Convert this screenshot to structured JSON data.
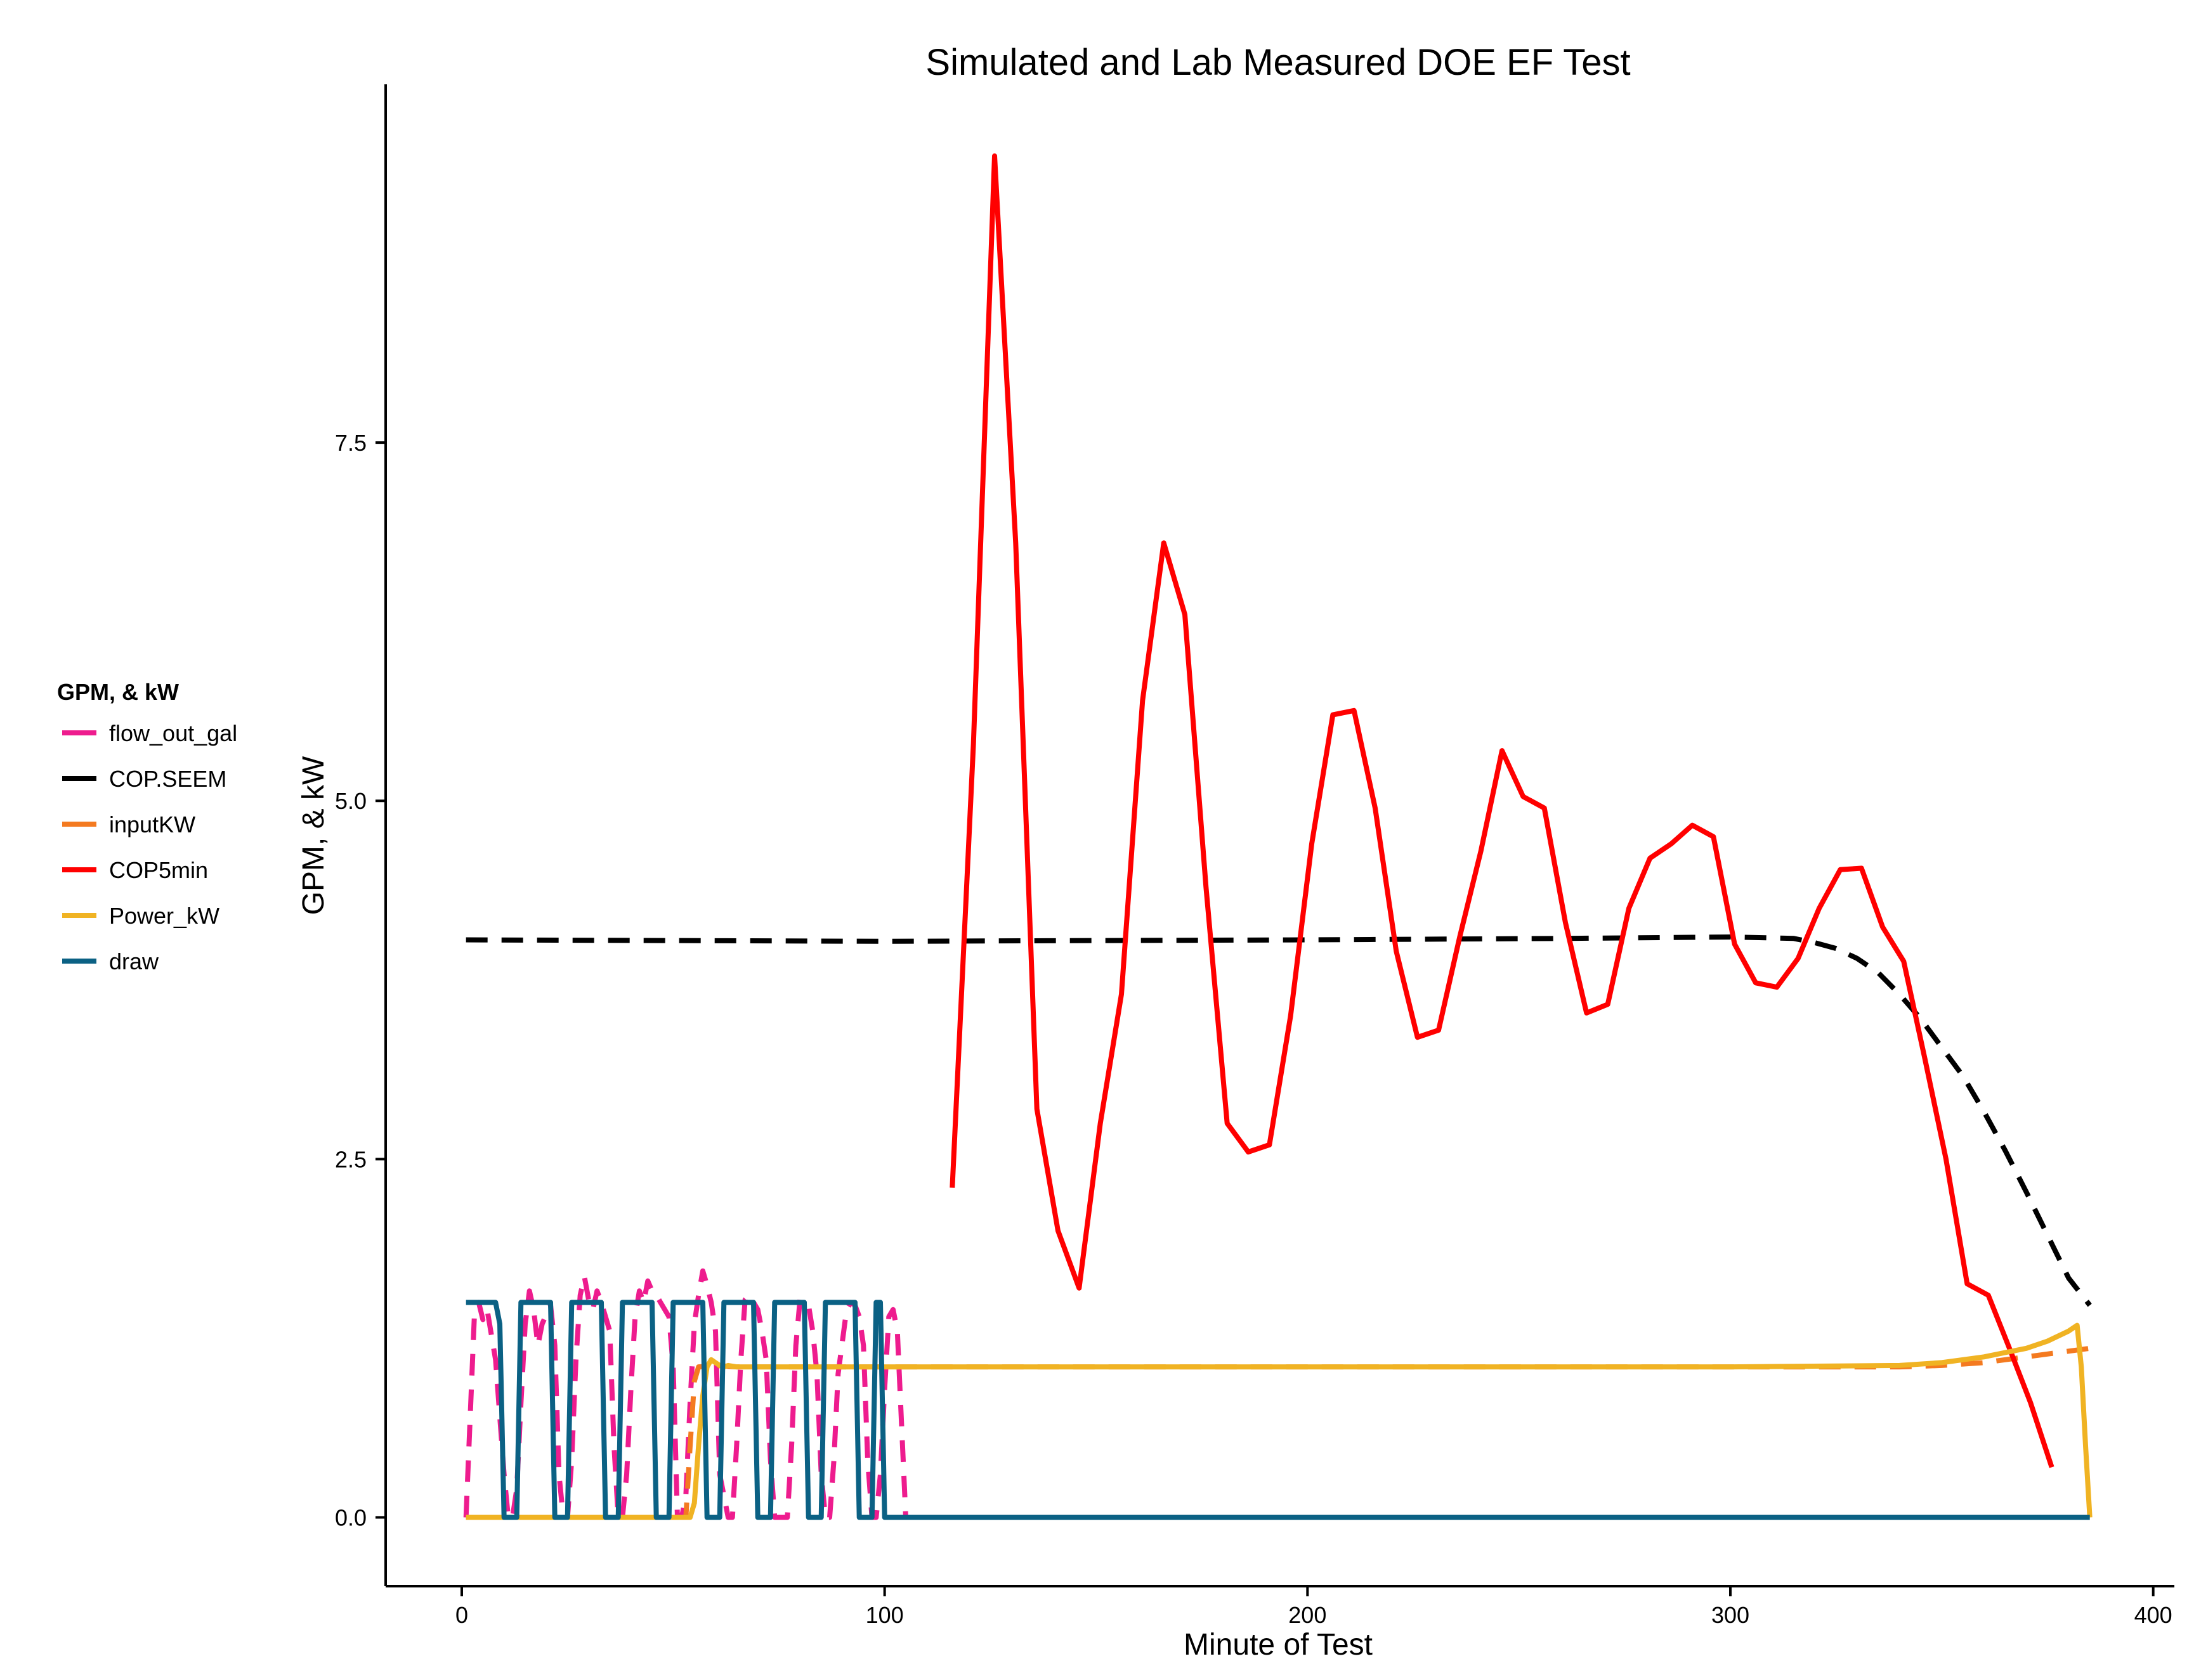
{
  "chart_data": {
    "type": "line",
    "title": "Simulated and Lab Measured DOE EF Test",
    "xlabel": "Minute of Test",
    "ylabel": "GPM, & kW",
    "xlim": [
      -18,
      405
    ],
    "ylim": [
      -0.48,
      10.0
    ],
    "x_ticks": [
      0,
      100,
      200,
      300,
      400
    ],
    "y_ticks": [
      0.0,
      2.5,
      5.0,
      7.5
    ],
    "x_tick_labels": [
      "0",
      "100",
      "200",
      "300",
      "400"
    ],
    "y_tick_labels": [
      "0.0",
      "2.5",
      "5.0",
      "7.5"
    ],
    "grid": false,
    "legend": {
      "title": "GPM, & kW",
      "placement": "left",
      "entries": [
        "flow_out_gal",
        "COP.SEEM",
        "inputKW",
        "COP5min",
        "Power_kW",
        "draw"
      ]
    },
    "series": [
      {
        "name": "flow_out_gal",
        "color": "#ee1c8e",
        "dash": "dashed",
        "x": [
          1,
          3,
          4,
          5,
          6,
          8,
          10,
          11,
          12,
          13,
          14,
          15,
          16,
          17,
          18,
          19,
          21,
          22,
          23,
          24,
          25,
          26,
          27,
          28,
          29,
          30,
          31,
          32,
          33,
          35,
          36,
          37,
          38,
          39,
          40,
          41,
          42,
          43,
          44,
          45,
          46,
          47,
          49,
          50,
          51,
          52,
          53,
          54,
          55,
          56,
          57,
          58,
          59,
          60,
          61,
          63,
          64,
          65,
          66,
          67,
          68,
          69,
          70,
          71,
          72,
          73,
          74,
          75,
          77,
          78,
          79,
          80,
          81,
          82,
          83,
          84,
          85,
          86,
          87,
          88,
          89,
          91,
          92,
          93,
          94,
          95,
          96,
          97,
          98,
          99,
          100,
          101,
          102,
          103,
          105
        ],
        "y": [
          0.0,
          1.42,
          1.5,
          1.38,
          1.45,
          1.1,
          0.3,
          0.0,
          0.0,
          0.2,
          0.8,
          1.35,
          1.58,
          1.45,
          1.2,
          1.35,
          1.48,
          1.2,
          0.3,
          0.0,
          0.0,
          0.4,
          1.1,
          1.55,
          1.68,
          1.52,
          1.45,
          1.58,
          1.5,
          1.3,
          0.5,
          0.0,
          0.0,
          0.3,
          0.9,
          1.4,
          1.58,
          1.5,
          1.65,
          1.58,
          1.55,
          1.5,
          1.4,
          1.05,
          0.0,
          0.0,
          0.15,
          0.8,
          1.35,
          1.55,
          1.72,
          1.62,
          1.5,
          1.3,
          0.3,
          0.0,
          0.0,
          0.5,
          1.1,
          1.52,
          1.55,
          1.5,
          1.45,
          1.3,
          1.1,
          0.4,
          0.0,
          0.0,
          0.0,
          0.5,
          1.2,
          1.52,
          1.5,
          1.48,
          1.3,
          1.0,
          0.3,
          0.0,
          0.0,
          0.4,
          1.0,
          1.45,
          1.5,
          1.48,
          1.4,
          1.2,
          0.4,
          0.0,
          0.0,
          0.3,
          0.9,
          1.4,
          1.45,
          1.3,
          0.0
        ]
      },
      {
        "name": "COP.SEEM",
        "color": "#000000",
        "dash": "dashed",
        "x": [
          1,
          100,
          200,
          260,
          300,
          315,
          320,
          325,
          330,
          335,
          340,
          345,
          350,
          355,
          360,
          365,
          370,
          375,
          380,
          385
        ],
        "y": [
          4.03,
          4.02,
          4.03,
          4.04,
          4.05,
          4.04,
          4.01,
          3.97,
          3.9,
          3.8,
          3.65,
          3.48,
          3.28,
          3.08,
          2.83,
          2.56,
          2.27,
          1.97,
          1.67,
          1.48
        ]
      },
      {
        "name": "inputKW",
        "color": "#f47a20",
        "dash": "dashed",
        "x": [
          1,
          53,
          54,
          55,
          56,
          60,
          65,
          100,
          200,
          300,
          340,
          350,
          355,
          360,
          365,
          370,
          375,
          380,
          385
        ],
        "y": [
          0.0,
          0.0,
          0.5,
          0.95,
          1.05,
          1.06,
          1.05,
          1.05,
          1.05,
          1.05,
          1.05,
          1.06,
          1.07,
          1.08,
          1.1,
          1.12,
          1.14,
          1.16,
          1.18
        ]
      },
      {
        "name": "COP5min",
        "color": "#ff0000",
        "dash": "solid",
        "x": [
          116,
          121,
          126,
          131,
          136,
          141,
          146,
          151,
          156,
          161,
          166,
          171,
          176,
          181,
          186,
          191,
          196,
          201,
          206,
          211,
          216,
          221,
          226,
          231,
          236,
          241,
          246,
          251,
          256,
          261,
          266,
          271,
          276,
          281,
          286,
          291,
          296,
          301,
          306,
          311,
          316,
          321,
          326,
          331,
          336,
          341,
          346,
          351,
          356,
          361,
          366,
          371,
          376
        ],
        "y": [
          2.3,
          5.4,
          9.5,
          6.8,
          2.85,
          2.0,
          1.6,
          2.75,
          3.65,
          5.7,
          6.8,
          6.3,
          4.4,
          2.75,
          2.55,
          2.6,
          3.5,
          4.7,
          5.6,
          5.63,
          4.95,
          3.95,
          3.35,
          3.4,
          4.05,
          4.65,
          5.35,
          5.03,
          4.95,
          4.15,
          3.52,
          3.58,
          4.25,
          4.6,
          4.7,
          4.83,
          4.75,
          4.0,
          3.73,
          3.7,
          3.9,
          4.25,
          4.52,
          4.53,
          4.12,
          3.88,
          3.2,
          2.5,
          1.63,
          1.55,
          1.18,
          0.8,
          0.35
        ]
      },
      {
        "name": "Power_kW",
        "color": "#f0b323",
        "dash": "solid",
        "x": [
          1,
          54,
          55,
          56,
          57,
          58,
          59,
          60,
          61,
          62,
          63,
          65,
          100,
          200,
          300,
          340,
          350,
          355,
          360,
          365,
          370,
          375,
          380,
          382,
          383,
          384,
          385
        ],
        "y": [
          0.0,
          0.0,
          0.1,
          0.5,
          0.85,
          1.05,
          1.1,
          1.08,
          1.06,
          1.05,
          1.06,
          1.05,
          1.05,
          1.05,
          1.05,
          1.06,
          1.08,
          1.1,
          1.12,
          1.15,
          1.18,
          1.23,
          1.3,
          1.34,
          1.05,
          0.5,
          0.0
        ]
      },
      {
        "name": "draw",
        "color": "#0b6184",
        "dash": "solid",
        "x": [
          1,
          8,
          9,
          10,
          13,
          14,
          21,
          22,
          25,
          26,
          33,
          34,
          37,
          38,
          45,
          46,
          49,
          50,
          57,
          58,
          61,
          62,
          69,
          70,
          73,
          74,
          81,
          82,
          85,
          86,
          93,
          94,
          97,
          98,
          99,
          100,
          385
        ],
        "y": [
          1.5,
          1.5,
          1.35,
          0.0,
          0.0,
          1.5,
          1.5,
          0.0,
          0.0,
          1.5,
          1.5,
          0.0,
          0.0,
          1.5,
          1.5,
          0.0,
          0.0,
          1.5,
          1.5,
          0.0,
          0.0,
          1.5,
          1.5,
          0.0,
          0.0,
          1.5,
          1.5,
          0.0,
          0.0,
          1.5,
          1.5,
          0.0,
          0.0,
          1.5,
          1.5,
          0.0,
          0.0
        ]
      }
    ]
  }
}
